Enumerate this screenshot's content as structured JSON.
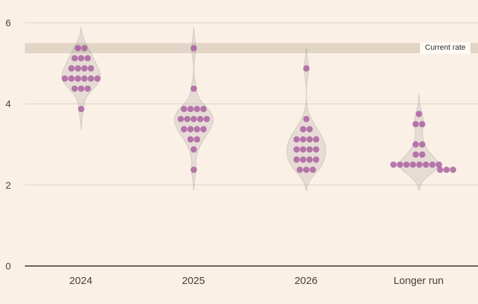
{
  "page": {
    "background_color": "#faf0e5"
  },
  "chart_data": {
    "type": "scatter",
    "subtype": "violin_dot_plot",
    "description": "Policy-rate projections dot plot with violin distributions",
    "categories": [
      "2024",
      "2025",
      "2026",
      "Longer run"
    ],
    "y_axis": {
      "min": 0,
      "max": 6,
      "ticks": [
        0,
        2,
        4,
        6
      ]
    },
    "current_rate_band": {
      "label": "Current rate",
      "from": 5.25,
      "to": 5.5
    },
    "series": [
      {
        "category": "2024",
        "dots": [
          {
            "value": 5.375,
            "count": 2
          },
          {
            "value": 5.125,
            "count": 3
          },
          {
            "value": 4.875,
            "count": 4
          },
          {
            "value": 4.625,
            "count": 6
          },
          {
            "value": 4.375,
            "count": 3
          },
          {
            "value": 3.875,
            "count": 1
          }
        ]
      },
      {
        "category": "2025",
        "dots": [
          {
            "value": 5.375,
            "count": 1
          },
          {
            "value": 4.375,
            "count": 1
          },
          {
            "value": 3.875,
            "count": 4
          },
          {
            "value": 3.625,
            "count": 5
          },
          {
            "value": 3.375,
            "count": 4
          },
          {
            "value": 3.125,
            "count": 2
          },
          {
            "value": 2.875,
            "count": 1
          },
          {
            "value": 2.375,
            "count": 1
          }
        ]
      },
      {
        "category": "2026",
        "dots": [
          {
            "value": 4.875,
            "count": 1
          },
          {
            "value": 3.625,
            "count": 1
          },
          {
            "value": 3.375,
            "count": 2
          },
          {
            "value": 3.125,
            "count": 4
          },
          {
            "value": 2.875,
            "count": 4
          },
          {
            "value": 2.625,
            "count": 4
          },
          {
            "value": 2.375,
            "count": 3
          }
        ]
      },
      {
        "category": "Longer run",
        "dots": [
          {
            "value": 3.75,
            "count": 1
          },
          {
            "value": 3.5,
            "count": 2
          },
          {
            "value": 3.0,
            "count": 2
          },
          {
            "value": 2.75,
            "count": 2
          },
          {
            "value": 2.5,
            "count": 8,
            "dx": -4
          },
          {
            "value": 2.375,
            "count": 3,
            "dx": 40
          }
        ]
      }
    ],
    "colors": {
      "dot": "#a85a9d",
      "violin_fill": "#8b8691",
      "band": "#e1d5c6",
      "grid": "#ddd2c5",
      "zero_axis": "#2e2a26",
      "text": "#44403a",
      "band_label_bg": "#fefaf4"
    },
    "legend_position": "none",
    "grid": "horizontal-only"
  }
}
